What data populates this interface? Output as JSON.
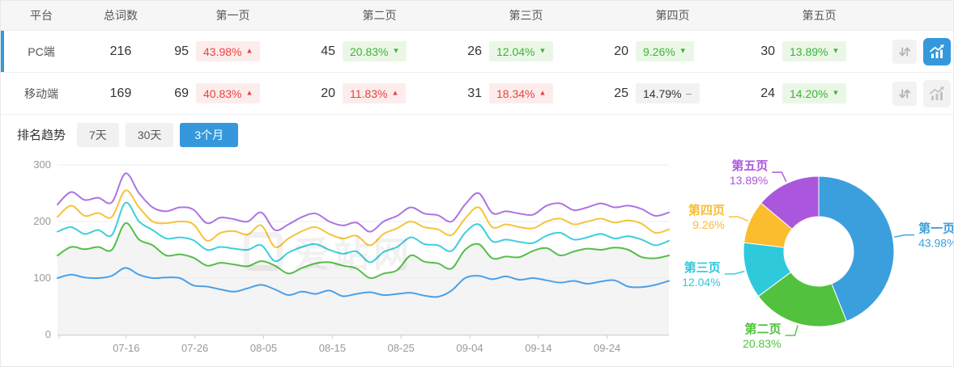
{
  "accent": "#3598DC",
  "badge_colors": {
    "up_text": "#E8423E",
    "up_bg": "#FCEDEC",
    "down_text": "#3DB334",
    "down_bg": "#EAF7E7",
    "flat_text": "#333333",
    "flat_bg": "#F2F2F2"
  },
  "table": {
    "headers": [
      "平台",
      "总词数",
      "第一页",
      "第二页",
      "第三页",
      "第四页",
      "第五页"
    ],
    "rows": [
      {
        "platform": "PC端",
        "total": "216",
        "selected": true,
        "chart_active": true,
        "pages": [
          {
            "count": "95",
            "pct": "43.98%",
            "trend": "up"
          },
          {
            "count": "45",
            "pct": "20.83%",
            "trend": "down"
          },
          {
            "count": "26",
            "pct": "12.04%",
            "trend": "down"
          },
          {
            "count": "20",
            "pct": "9.26%",
            "trend": "down"
          },
          {
            "count": "30",
            "pct": "13.89%",
            "trend": "down"
          }
        ]
      },
      {
        "platform": "移动端",
        "total": "169",
        "selected": false,
        "chart_active": false,
        "pages": [
          {
            "count": "69",
            "pct": "40.83%",
            "trend": "up"
          },
          {
            "count": "20",
            "pct": "11.83%",
            "trend": "up"
          },
          {
            "count": "31",
            "pct": "18.34%",
            "trend": "up"
          },
          {
            "count": "25",
            "pct": "14.79%",
            "trend": "flat"
          },
          {
            "count": "24",
            "pct": "14.20%",
            "trend": "down"
          }
        ]
      }
    ]
  },
  "trend": {
    "title": "排名趋势",
    "tabs": [
      {
        "label": "7天",
        "active": false
      },
      {
        "label": "30天",
        "active": false
      },
      {
        "label": "3个月",
        "active": true
      }
    ]
  },
  "watermark": "爱站网",
  "chart_data": [
    {
      "type": "line",
      "x_tick_labels": [
        "07-16",
        "07-26",
        "08-05",
        "08-15",
        "08-25",
        "09-04",
        "09-14",
        "09-24"
      ],
      "x_tick_days": [
        10,
        20,
        30,
        40,
        50,
        60,
        70,
        80
      ],
      "x_range_days": [
        0,
        89
      ],
      "ylim": [
        0,
        300
      ],
      "yticks": [
        0,
        100,
        200,
        300
      ],
      "grid": true,
      "legend": false,
      "series": [
        {
          "name": "第一页",
          "color": "#4BA0E8",
          "area": false,
          "values": [
            100,
            106,
            101,
            100,
            104,
            118,
            106,
            100,
            101,
            100,
            87,
            85,
            80,
            76,
            82,
            88,
            80,
            70,
            76,
            72,
            78,
            68,
            72,
            75,
            70,
            72,
            74,
            69,
            67,
            78,
            100,
            104,
            98,
            103,
            97,
            100,
            96,
            92,
            95,
            90,
            94,
            96,
            85,
            84,
            88,
            95
          ]
        },
        {
          "name": "第二页",
          "color": "#56BE49",
          "area": true,
          "values": [
            140,
            155,
            151,
            155,
            150,
            197,
            168,
            158,
            140,
            142,
            136,
            122,
            127,
            124,
            121,
            130,
            122,
            108,
            118,
            126,
            128,
            122,
            117,
            100,
            108,
            114,
            140,
            129,
            126,
            117,
            150,
            160,
            135,
            138,
            137,
            148,
            153,
            140,
            147,
            152,
            150,
            154,
            150,
            137,
            135,
            140
          ]
        },
        {
          "name": "第三页",
          "color": "#3ECFDE",
          "area": false,
          "values": [
            182,
            190,
            178,
            185,
            176,
            233,
            200,
            185,
            170,
            172,
            167,
            150,
            155,
            152,
            150,
            158,
            130,
            145,
            155,
            160,
            150,
            143,
            147,
            128,
            146,
            155,
            172,
            160,
            158,
            148,
            180,
            195,
            165,
            168,
            164,
            162,
            175,
            180,
            168,
            172,
            178,
            170,
            174,
            168,
            158,
            166
          ]
        },
        {
          "name": "第四页",
          "color": "#F8C33C",
          "area": false,
          "values": [
            208,
            228,
            210,
            215,
            208,
            255,
            225,
            200,
            197,
            200,
            195,
            166,
            180,
            183,
            177,
            193,
            155,
            170,
            183,
            190,
            178,
            170,
            175,
            158,
            178,
            188,
            200,
            190,
            186,
            176,
            205,
            225,
            190,
            195,
            190,
            188,
            200,
            205,
            195,
            200,
            205,
            198,
            202,
            196,
            180,
            186
          ]
        },
        {
          "name": "第五页",
          "color": "#AD74E3",
          "area": false,
          "values": [
            230,
            252,
            238,
            242,
            234,
            285,
            250,
            225,
            218,
            225,
            221,
            197,
            207,
            204,
            200,
            216,
            185,
            195,
            208,
            214,
            200,
            193,
            198,
            182,
            200,
            210,
            225,
            214,
            211,
            200,
            230,
            250,
            215,
            218,
            214,
            212,
            228,
            232,
            220,
            225,
            232,
            225,
            228,
            222,
            210,
            216
          ]
        }
      ]
    },
    {
      "type": "donut",
      "slices": [
        {
          "label": "第一页",
          "pct_label": "43.98%",
          "value": 43.98,
          "color": "#3B9FDE"
        },
        {
          "label": "第二页",
          "pct_label": "20.83%",
          "value": 20.83,
          "color": "#52C13D"
        },
        {
          "label": "第三页",
          "pct_label": "12.04%",
          "value": 12.04,
          "color": "#2FC9DC"
        },
        {
          "label": "第四页",
          "pct_label": "9.26%",
          "value": 9.26,
          "color": "#FBBD2E"
        },
        {
          "label": "第五页",
          "pct_label": "13.89%",
          "value": 13.89,
          "color": "#AB57DD"
        }
      ]
    }
  ]
}
